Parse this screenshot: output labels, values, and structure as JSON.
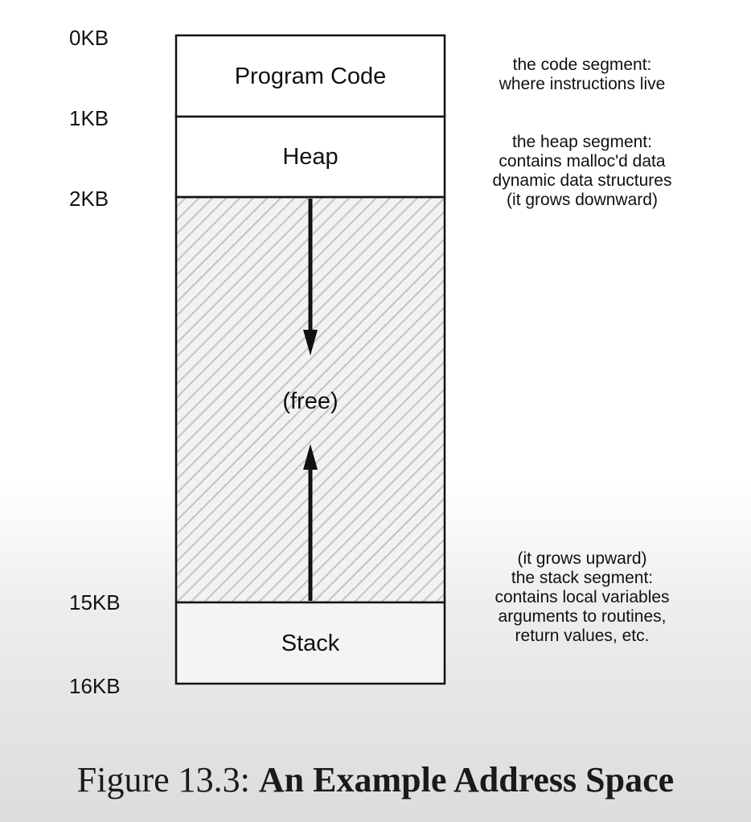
{
  "address_labels": [
    "0KB",
    "1KB",
    "2KB",
    "15KB",
    "16KB"
  ],
  "segments": {
    "code": "Program Code",
    "heap": "Heap",
    "free": "(free)",
    "stack": "Stack"
  },
  "notes": {
    "code": [
      "the code segment:",
      "where instructions live"
    ],
    "heap": [
      "the heap segment:",
      "contains malloc'd data",
      "dynamic data structures",
      "(it grows downward)"
    ],
    "stack": [
      "(it grows upward)",
      "the stack segment:",
      "contains local variables",
      "arguments to routines,",
      "return values, etc."
    ]
  },
  "caption": {
    "prefix": "Figure 13.3:",
    "title": "An Example Address Space"
  }
}
